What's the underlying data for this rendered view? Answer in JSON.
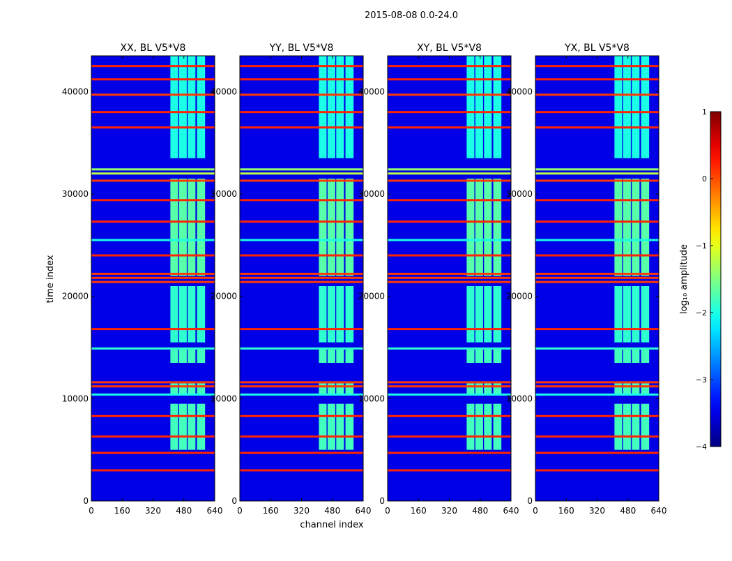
{
  "chart_data": {
    "type": "heatmap",
    "suptitle": "2015-08-08 0.0-24.0",
    "xlabel": "channel index",
    "ylabel": "time index",
    "x_range": [
      0,
      640
    ],
    "y_range": [
      0,
      43500
    ],
    "x_ticks": [
      "0",
      "160",
      "320",
      "480",
      "640"
    ],
    "x_tick_values": [
      0,
      160,
      320,
      480,
      640
    ],
    "y_ticks": [
      "0",
      "10000",
      "20000",
      "30000",
      "40000"
    ],
    "y_tick_values": [
      0,
      10000,
      20000,
      30000,
      40000
    ],
    "panels": [
      {
        "title": "XX, BL V5*V8"
      },
      {
        "title": "YY, BL V5*V8"
      },
      {
        "title": "XY, BL V5*V8"
      },
      {
        "title": "YX, BL V5*V8"
      }
    ],
    "colorbar": {
      "label": "log₁₀ amplitude",
      "range": [
        -4,
        1
      ],
      "ticks": [
        "1",
        "0",
        "−1",
        "−2",
        "−3",
        "−4"
      ],
      "tick_values": [
        1,
        0,
        -1,
        -2,
        -3,
        -4
      ],
      "colormap": "jet"
    },
    "background_level": -3.5,
    "rfi_channel_band": [
      410,
      600
    ],
    "rfi_channel_subbands": [
      [
        410,
        450
      ],
      [
        455,
        495
      ],
      [
        500,
        540
      ],
      [
        548,
        590
      ]
    ],
    "rfi_time_blocks": [
      {
        "t0": 5000,
        "t1": 9500,
        "level": -1.8
      },
      {
        "t0": 10500,
        "t1": 11500,
        "level": -1.8
      },
      {
        "t0": 13500,
        "t1": 14800,
        "level": -1.8
      },
      {
        "t0": 15500,
        "t1": 21000,
        "level": -1.9
      },
      {
        "t0": 22000,
        "t1": 31500,
        "level": -1.7
      },
      {
        "t0": 33500,
        "t1": 43500,
        "level": -2.0
      }
    ],
    "flagged_rows": [
      {
        "t": 3000,
        "level": 0.2
      },
      {
        "t": 4700,
        "level": 0.2
      },
      {
        "t": 6300,
        "level": 0.2
      },
      {
        "t": 8300,
        "level": 0.2
      },
      {
        "t": 10400,
        "level": -2.0
      },
      {
        "t": 11200,
        "level": 0.1
      },
      {
        "t": 11600,
        "level": 0.1
      },
      {
        "t": 14900,
        "level": -1.9
      },
      {
        "t": 16800,
        "level": 0.2
      },
      {
        "t": 21400,
        "level": 0.1
      },
      {
        "t": 21800,
        "level": 0.1
      },
      {
        "t": 22200,
        "level": 0.1
      },
      {
        "t": 24000,
        "level": 0.2
      },
      {
        "t": 25500,
        "level": -2.0
      },
      {
        "t": 27300,
        "level": 0.2
      },
      {
        "t": 29400,
        "level": 0.2
      },
      {
        "t": 31300,
        "level": 0.1
      },
      {
        "t": 32000,
        "level": -1.2
      },
      {
        "t": 32400,
        "level": -1.4
      },
      {
        "t": 36500,
        "level": 0.2
      },
      {
        "t": 38000,
        "level": 0.2
      },
      {
        "t": 39700,
        "level": 0.1
      },
      {
        "t": 41200,
        "level": 0.2
      },
      {
        "t": 42500,
        "level": 0.2
      }
    ]
  }
}
